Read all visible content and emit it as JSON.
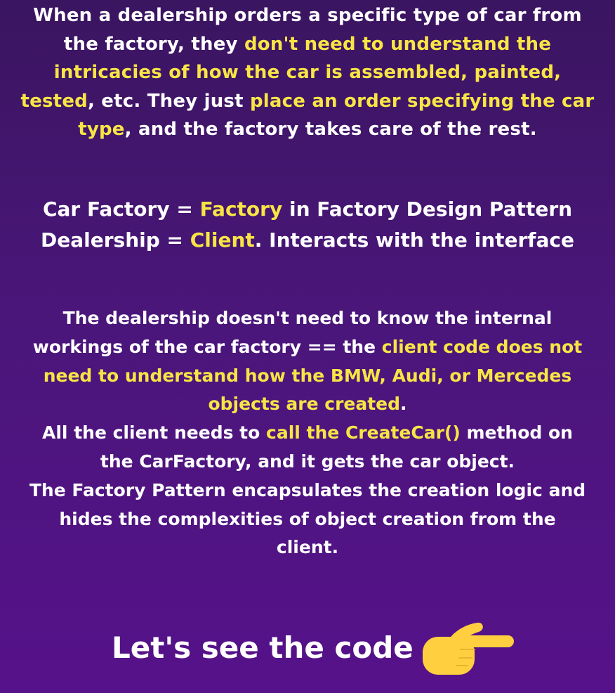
{
  "paragraph1": {
    "l1a": "When a dealership orders a specific type of car from",
    "l2a": "the factory, they ",
    "l2b": "don't need to understand the",
    "l3a": "intricacies of how the car is assembled, painted,",
    "l4a": "tested",
    "l4b": ", etc. They just ",
    "l4c": "place an order specifying the car",
    "l5a": "type",
    "l5b": ", and the factory takes care of the rest."
  },
  "paragraph2": {
    "l1a": "Car Factory = ",
    "l1b": "Factory",
    "l1c": " in Factory Design Pattern",
    "l2a": "Dealership = ",
    "l2b": "Client",
    "l2c": ". Interacts with the interface"
  },
  "paragraph3": {
    "l1a": "The dealership doesn't need to know the internal",
    "l2a": "workings of the car factory == the ",
    "l2b": "client code does not",
    "l3a": "need to understand how the BMW, Audi, or Mercedes",
    "l4a": "objects are created",
    "l4b": ".",
    "l5a": "All the client needs to ",
    "l5b": "call the CreateCar()",
    "l5c": " method on",
    "l6a": "the CarFactory, and it gets the car object.",
    "l7a": "The Factory Pattern encapsulates the creation logic and",
    "l8a": "hides the complexities of object creation from the",
    "l9a": "client."
  },
  "cta": {
    "text": "Let's see the code",
    "icon": "pointing-right-hand-icon"
  },
  "colors": {
    "background_top": "#3a1560",
    "background_bottom": "#56128a",
    "highlight": "#f8e545",
    "text": "#ffffff",
    "icon": "#ffcf3f"
  }
}
